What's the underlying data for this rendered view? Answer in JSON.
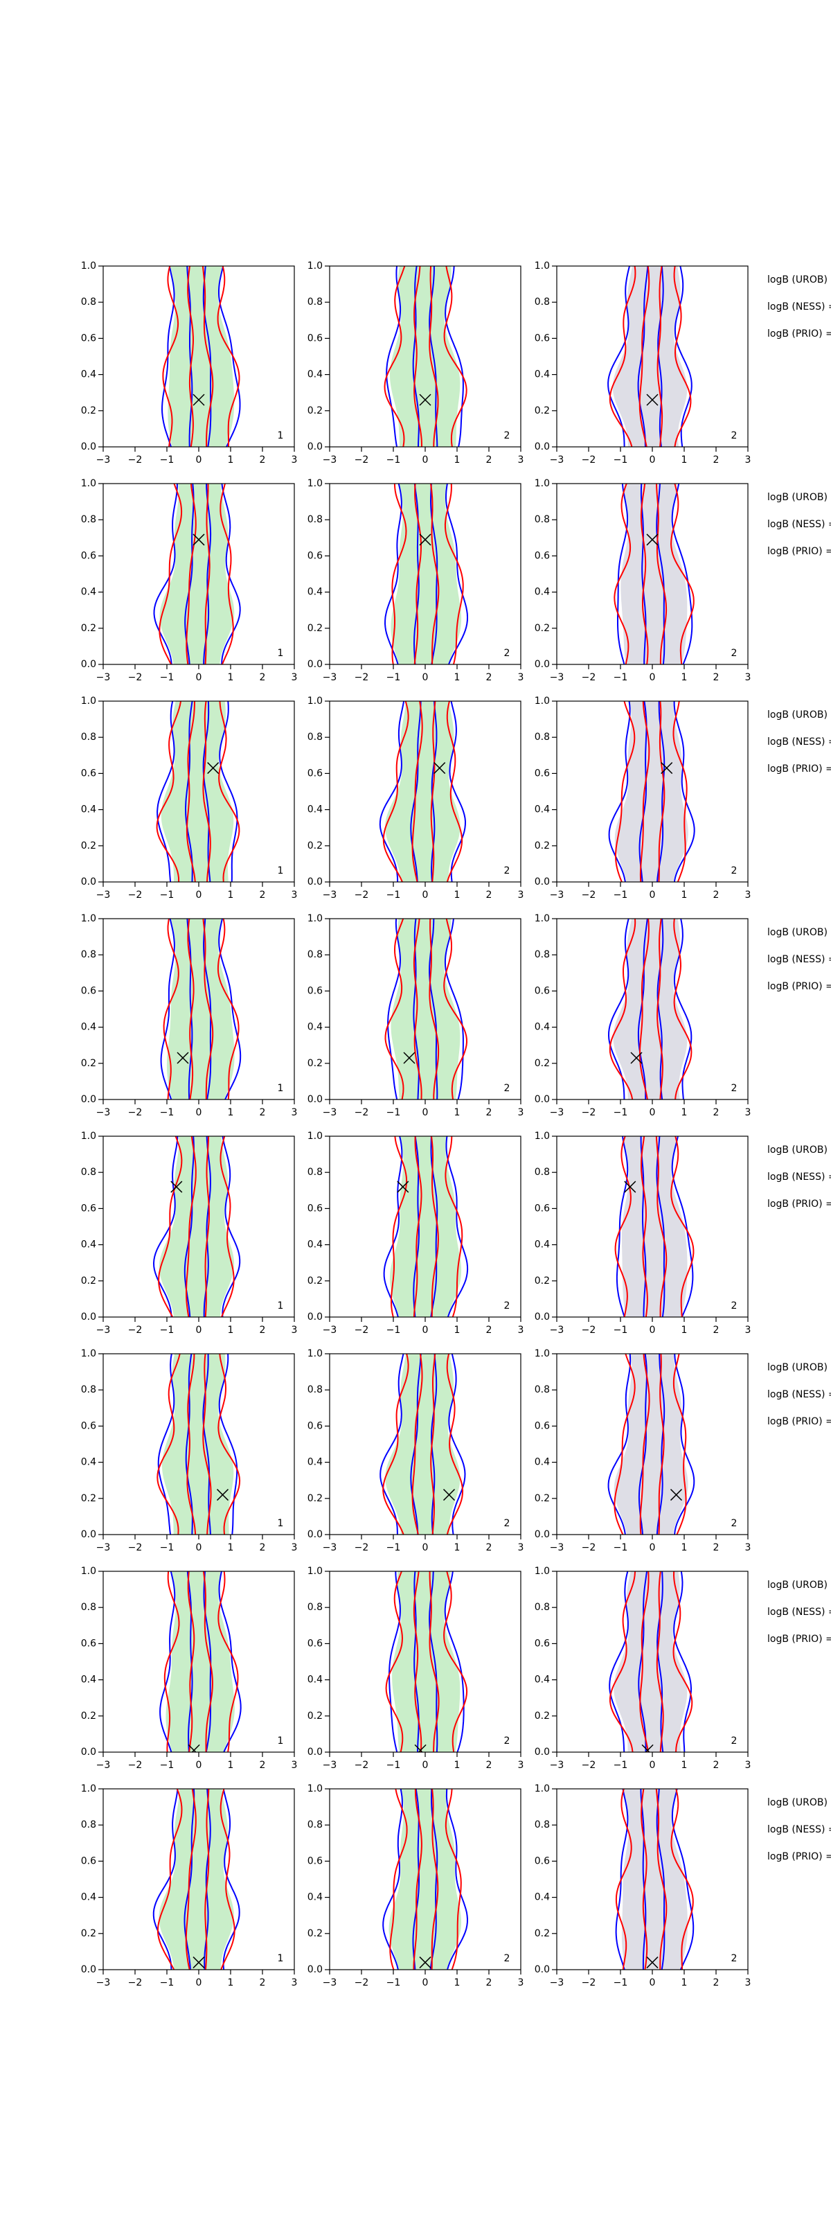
{
  "chart_data": [
    {
      "type": "contour",
      "xlim": [
        -3,
        3
      ],
      "xticks": [
        {
          "value": -3,
          "label": "−3"
        },
        {
          "value": -2,
          "label": "−2"
        },
        {
          "value": -1,
          "label": "−1"
        },
        0,
        1,
        2,
        3
      ],
      "ylim": [
        0,
        1
      ],
      "yticks": [
        {
          "value": 0,
          "label": "0.0"
        },
        0.2,
        0.4,
        0.6,
        0.8,
        {
          "value": 1,
          "label": "1.0"
        }
      ],
      "label": "1",
      "marker_x": 0,
      "marker_y": 0.26,
      "fill": "#c9eec9",
      "contour_colors": [
        "#0000ff",
        "#ff0000"
      ]
    },
    {
      "type": "contour",
      "xlim": [
        -3,
        3
      ],
      "xticks": [
        {
          "value": -3,
          "label": "−3"
        },
        {
          "value": -2,
          "label": "−2"
        },
        {
          "value": -1,
          "label": "−1"
        },
        0,
        1,
        2,
        3
      ],
      "ylim": [
        0,
        1
      ],
      "yticks": [
        {
          "value": 0,
          "label": "0.0"
        },
        0.2,
        0.4,
        0.6,
        0.8,
        {
          "value": 1,
          "label": "1.0"
        }
      ],
      "label": "2",
      "marker_x": 0,
      "marker_y": 0.26,
      "fill": "#c9eec9",
      "contour_colors": [
        "#0000ff",
        "#ff0000"
      ]
    },
    {
      "type": "contour",
      "xlim": [
        -3,
        3
      ],
      "xticks": [
        {
          "value": -3,
          "label": "−3"
        },
        {
          "value": -2,
          "label": "−2"
        },
        {
          "value": -1,
          "label": "−1"
        },
        0,
        1,
        2,
        3
      ],
      "ylim": [
        0,
        1
      ],
      "yticks": [
        {
          "value": 0,
          "label": "0.0"
        },
        0.2,
        0.4,
        0.6,
        0.8,
        {
          "value": 1,
          "label": "1.0"
        }
      ],
      "label": "2",
      "marker_x": 0,
      "marker_y": 0.26,
      "fill": "#dedee6",
      "contour_colors": [
        "#0000ff",
        "#ff0000"
      ],
      "annotations": [
        "logB (UROB) =",
        "logB (NESS) =",
        "logB (PRIO) ="
      ]
    },
    {
      "type": "contour",
      "xlim": [
        -3,
        3
      ],
      "xticks": [
        {
          "value": -3,
          "label": "−3"
        },
        {
          "value": -2,
          "label": "−2"
        },
        {
          "value": -1,
          "label": "−1"
        },
        0,
        1,
        2,
        3
      ],
      "ylim": [
        0,
        1
      ],
      "yticks": [
        {
          "value": 0,
          "label": "0.0"
        },
        0.2,
        0.4,
        0.6,
        0.8,
        {
          "value": 1,
          "label": "1.0"
        }
      ],
      "label": "1",
      "marker_x": 0,
      "marker_y": 0.69,
      "fill": "#c9eec9",
      "contour_colors": [
        "#0000ff",
        "#ff0000"
      ]
    },
    {
      "type": "contour",
      "xlim": [
        -3,
        3
      ],
      "xticks": [
        {
          "value": -3,
          "label": "−3"
        },
        {
          "value": -2,
          "label": "−2"
        },
        {
          "value": -1,
          "label": "−1"
        },
        0,
        1,
        2,
        3
      ],
      "ylim": [
        0,
        1
      ],
      "yticks": [
        {
          "value": 0,
          "label": "0.0"
        },
        0.2,
        0.4,
        0.6,
        0.8,
        {
          "value": 1,
          "label": "1.0"
        }
      ],
      "label": "2",
      "marker_x": 0,
      "marker_y": 0.69,
      "fill": "#c9eec9",
      "contour_colors": [
        "#0000ff",
        "#ff0000"
      ]
    },
    {
      "type": "contour",
      "xlim": [
        -3,
        3
      ],
      "xticks": [
        {
          "value": -3,
          "label": "−3"
        },
        {
          "value": -2,
          "label": "−2"
        },
        {
          "value": -1,
          "label": "−1"
        },
        0,
        1,
        2,
        3
      ],
      "ylim": [
        0,
        1
      ],
      "yticks": [
        {
          "value": 0,
          "label": "0.0"
        },
        0.2,
        0.4,
        0.6,
        0.8,
        {
          "value": 1,
          "label": "1.0"
        }
      ],
      "label": "2",
      "marker_x": 0,
      "marker_y": 0.69,
      "fill": "#dedee6",
      "contour_colors": [
        "#0000ff",
        "#ff0000"
      ],
      "annotations": [
        "logB (UROB) =",
        "logB (NESS) =",
        "logB (PRIO) ="
      ]
    },
    {
      "type": "contour",
      "xlim": [
        -3,
        3
      ],
      "xticks": [
        {
          "value": -3,
          "label": "−3"
        },
        {
          "value": -2,
          "label": "−2"
        },
        {
          "value": -1,
          "label": "−1"
        },
        0,
        1,
        2,
        3
      ],
      "ylim": [
        0,
        1
      ],
      "yticks": [
        {
          "value": 0,
          "label": "0.0"
        },
        0.2,
        0.4,
        0.6,
        0.8,
        {
          "value": 1,
          "label": "1.0"
        }
      ],
      "label": "1",
      "marker_x": 0.45,
      "marker_y": 0.63,
      "fill": "#c9eec9",
      "contour_colors": [
        "#0000ff",
        "#ff0000"
      ]
    },
    {
      "type": "contour",
      "xlim": [
        -3,
        3
      ],
      "xticks": [
        {
          "value": -3,
          "label": "−3"
        },
        {
          "value": -2,
          "label": "−2"
        },
        {
          "value": -1,
          "label": "−1"
        },
        0,
        1,
        2,
        3
      ],
      "ylim": [
        0,
        1
      ],
      "yticks": [
        {
          "value": 0,
          "label": "0.0"
        },
        0.2,
        0.4,
        0.6,
        0.8,
        {
          "value": 1,
          "label": "1.0"
        }
      ],
      "label": "2",
      "marker_x": 0.45,
      "marker_y": 0.63,
      "fill": "#c9eec9",
      "contour_colors": [
        "#0000ff",
        "#ff0000"
      ]
    },
    {
      "type": "contour",
      "xlim": [
        -3,
        3
      ],
      "xticks": [
        {
          "value": -3,
          "label": "−3"
        },
        {
          "value": -2,
          "label": "−2"
        },
        {
          "value": -1,
          "label": "−1"
        },
        0,
        1,
        2,
        3
      ],
      "ylim": [
        0,
        1
      ],
      "yticks": [
        {
          "value": 0,
          "label": "0.0"
        },
        0.2,
        0.4,
        0.6,
        0.8,
        {
          "value": 1,
          "label": "1.0"
        }
      ],
      "label": "2",
      "marker_x": 0.45,
      "marker_y": 0.63,
      "fill": "#dedee6",
      "contour_colors": [
        "#0000ff",
        "#ff0000"
      ],
      "annotations": [
        "logB (UROB) =",
        "logB (NESS) =",
        "logB (PRIO) ="
      ]
    },
    {
      "type": "contour",
      "xlim": [
        -3,
        3
      ],
      "xticks": [
        {
          "value": -3,
          "label": "−3"
        },
        {
          "value": -2,
          "label": "−2"
        },
        {
          "value": -1,
          "label": "−1"
        },
        0,
        1,
        2,
        3
      ],
      "ylim": [
        0,
        1
      ],
      "yticks": [
        {
          "value": 0,
          "label": "0.0"
        },
        0.2,
        0.4,
        0.6,
        0.8,
        {
          "value": 1,
          "label": "1.0"
        }
      ],
      "label": "1",
      "marker_x": -0.5,
      "marker_y": 0.23,
      "fill": "#c9eec9",
      "contour_colors": [
        "#0000ff",
        "#ff0000"
      ]
    },
    {
      "type": "contour",
      "xlim": [
        -3,
        3
      ],
      "xticks": [
        {
          "value": -3,
          "label": "−3"
        },
        {
          "value": -2,
          "label": "−2"
        },
        {
          "value": -1,
          "label": "−1"
        },
        0,
        1,
        2,
        3
      ],
      "ylim": [
        0,
        1
      ],
      "yticks": [
        {
          "value": 0,
          "label": "0.0"
        },
        0.2,
        0.4,
        0.6,
        0.8,
        {
          "value": 1,
          "label": "1.0"
        }
      ],
      "label": "2",
      "marker_x": -0.5,
      "marker_y": 0.23,
      "fill": "#c9eec9",
      "contour_colors": [
        "#0000ff",
        "#ff0000"
      ]
    },
    {
      "type": "contour",
      "xlim": [
        -3,
        3
      ],
      "xticks": [
        {
          "value": -3,
          "label": "−3"
        },
        {
          "value": -2,
          "label": "−2"
        },
        {
          "value": -1,
          "label": "−1"
        },
        0,
        1,
        2,
        3
      ],
      "ylim": [
        0,
        1
      ],
      "yticks": [
        {
          "value": 0,
          "label": "0.0"
        },
        0.2,
        0.4,
        0.6,
        0.8,
        {
          "value": 1,
          "label": "1.0"
        }
      ],
      "label": "2",
      "marker_x": -0.5,
      "marker_y": 0.23,
      "fill": "#dedee6",
      "contour_colors": [
        "#0000ff",
        "#ff0000"
      ],
      "annotations": [
        "logB (UROB) =",
        "logB (NESS) =",
        "logB (PRIO) ="
      ]
    },
    {
      "type": "contour",
      "xlim": [
        -3,
        3
      ],
      "xticks": [
        {
          "value": -3,
          "label": "−3"
        },
        {
          "value": -2,
          "label": "−2"
        },
        {
          "value": -1,
          "label": "−1"
        },
        0,
        1,
        2,
        3
      ],
      "ylim": [
        0,
        1
      ],
      "yticks": [
        {
          "value": 0,
          "label": "0.0"
        },
        0.2,
        0.4,
        0.6,
        0.8,
        {
          "value": 1,
          "label": "1.0"
        }
      ],
      "label": "1",
      "marker_x": -0.7,
      "marker_y": 0.72,
      "fill": "#c9eec9",
      "contour_colors": [
        "#0000ff",
        "#ff0000"
      ]
    },
    {
      "type": "contour",
      "xlim": [
        -3,
        3
      ],
      "xticks": [
        {
          "value": -3,
          "label": "−3"
        },
        {
          "value": -2,
          "label": "−2"
        },
        {
          "value": -1,
          "label": "−1"
        },
        0,
        1,
        2,
        3
      ],
      "ylim": [
        0,
        1
      ],
      "yticks": [
        {
          "value": 0,
          "label": "0.0"
        },
        0.2,
        0.4,
        0.6,
        0.8,
        {
          "value": 1,
          "label": "1.0"
        }
      ],
      "label": "2",
      "marker_x": -0.7,
      "marker_y": 0.72,
      "fill": "#c9eec9",
      "contour_colors": [
        "#0000ff",
        "#ff0000"
      ]
    },
    {
      "type": "contour",
      "xlim": [
        -3,
        3
      ],
      "xticks": [
        {
          "value": -3,
          "label": "−3"
        },
        {
          "value": -2,
          "label": "−2"
        },
        {
          "value": -1,
          "label": "−1"
        },
        0,
        1,
        2,
        3
      ],
      "ylim": [
        0,
        1
      ],
      "yticks": [
        {
          "value": 0,
          "label": "0.0"
        },
        0.2,
        0.4,
        0.6,
        0.8,
        {
          "value": 1,
          "label": "1.0"
        }
      ],
      "label": "2",
      "marker_x": -0.7,
      "marker_y": 0.72,
      "fill": "#dedee6",
      "contour_colors": [
        "#0000ff",
        "#ff0000"
      ],
      "annotations": [
        "logB (UROB) =",
        "logB (NESS) =",
        "logB (PRIO) ="
      ]
    },
    {
      "type": "contour",
      "xlim": [
        -3,
        3
      ],
      "xticks": [
        {
          "value": -3,
          "label": "−3"
        },
        {
          "value": -2,
          "label": "−2"
        },
        {
          "value": -1,
          "label": "−1"
        },
        0,
        1,
        2,
        3
      ],
      "ylim": [
        0,
        1
      ],
      "yticks": [
        {
          "value": 0,
          "label": "0.0"
        },
        0.2,
        0.4,
        0.6,
        0.8,
        {
          "value": 1,
          "label": "1.0"
        }
      ],
      "label": "1",
      "marker_x": 0.75,
      "marker_y": 0.22,
      "fill": "#c9eec9",
      "contour_colors": [
        "#0000ff",
        "#ff0000"
      ]
    },
    {
      "type": "contour",
      "xlim": [
        -3,
        3
      ],
      "xticks": [
        {
          "value": -3,
          "label": "−3"
        },
        {
          "value": -2,
          "label": "−2"
        },
        {
          "value": -1,
          "label": "−1"
        },
        0,
        1,
        2,
        3
      ],
      "ylim": [
        0,
        1
      ],
      "yticks": [
        {
          "value": 0,
          "label": "0.0"
        },
        0.2,
        0.4,
        0.6,
        0.8,
        {
          "value": 1,
          "label": "1.0"
        }
      ],
      "label": "2",
      "marker_x": 0.75,
      "marker_y": 0.22,
      "fill": "#c9eec9",
      "contour_colors": [
        "#0000ff",
        "#ff0000"
      ]
    },
    {
      "type": "contour",
      "xlim": [
        -3,
        3
      ],
      "xticks": [
        {
          "value": -3,
          "label": "−3"
        },
        {
          "value": -2,
          "label": "−2"
        },
        {
          "value": -1,
          "label": "−1"
        },
        0,
        1,
        2,
        3
      ],
      "ylim": [
        0,
        1
      ],
      "yticks": [
        {
          "value": 0,
          "label": "0.0"
        },
        0.2,
        0.4,
        0.6,
        0.8,
        {
          "value": 1,
          "label": "1.0"
        }
      ],
      "label": "2",
      "marker_x": 0.75,
      "marker_y": 0.22,
      "fill": "#dedee6",
      "contour_colors": [
        "#0000ff",
        "#ff0000"
      ],
      "annotations": [
        "logB (UROB) =",
        "logB (NESS) =",
        "logB (PRIO) ="
      ]
    },
    {
      "type": "contour",
      "xlim": [
        -3,
        3
      ],
      "xticks": [
        {
          "value": -3,
          "label": "−3"
        },
        {
          "value": -2,
          "label": "−2"
        },
        {
          "value": -1,
          "label": "−1"
        },
        0,
        1,
        2,
        3
      ],
      "ylim": [
        0,
        1
      ],
      "yticks": [
        {
          "value": 0,
          "label": "0.0"
        },
        0.2,
        0.4,
        0.6,
        0.8,
        {
          "value": 1,
          "label": "1.0"
        }
      ],
      "label": "1",
      "marker_x": -0.15,
      "marker_y": 0.01,
      "fill": "#c9eec9",
      "contour_colors": [
        "#0000ff",
        "#ff0000"
      ]
    },
    {
      "type": "contour",
      "xlim": [
        -3,
        3
      ],
      "xticks": [
        {
          "value": -3,
          "label": "−3"
        },
        {
          "value": -2,
          "label": "−2"
        },
        {
          "value": -1,
          "label": "−1"
        },
        0,
        1,
        2,
        3
      ],
      "ylim": [
        0,
        1
      ],
      "yticks": [
        {
          "value": 0,
          "label": "0.0"
        },
        0.2,
        0.4,
        0.6,
        0.8,
        {
          "value": 1,
          "label": "1.0"
        }
      ],
      "label": "2",
      "marker_x": -0.15,
      "marker_y": 0.01,
      "fill": "#c9eec9",
      "contour_colors": [
        "#0000ff",
        "#ff0000"
      ]
    },
    {
      "type": "contour",
      "xlim": [
        -3,
        3
      ],
      "xticks": [
        {
          "value": -3,
          "label": "−3"
        },
        {
          "value": -2,
          "label": "−2"
        },
        {
          "value": -1,
          "label": "−1"
        },
        0,
        1,
        2,
        3
      ],
      "ylim": [
        0,
        1
      ],
      "yticks": [
        {
          "value": 0,
          "label": "0.0"
        },
        0.2,
        0.4,
        0.6,
        0.8,
        {
          "value": 1,
          "label": "1.0"
        }
      ],
      "label": "2",
      "marker_x": -0.15,
      "marker_y": 0.01,
      "fill": "#dedee6",
      "contour_colors": [
        "#0000ff",
        "#ff0000"
      ],
      "annotations": [
        "logB (UROB) =",
        "logB (NESS) =",
        "logB (PRIO) ="
      ]
    },
    {
      "type": "contour",
      "xlim": [
        -3,
        3
      ],
      "xticks": [
        {
          "value": -3,
          "label": "−3"
        },
        {
          "value": -2,
          "label": "−2"
        },
        {
          "value": -1,
          "label": "−1"
        },
        0,
        1,
        2,
        3
      ],
      "ylim": [
        0,
        1
      ],
      "yticks": [
        {
          "value": 0,
          "label": "0.0"
        },
        0.2,
        0.4,
        0.6,
        0.8,
        {
          "value": 1,
          "label": "1.0"
        }
      ],
      "label": "1",
      "marker_x": 0,
      "marker_y": 0.04,
      "fill": "#c9eec9",
      "contour_colors": [
        "#0000ff",
        "#ff0000"
      ]
    },
    {
      "type": "contour",
      "xlim": [
        -3,
        3
      ],
      "xticks": [
        {
          "value": -3,
          "label": "−3"
        },
        {
          "value": -2,
          "label": "−2"
        },
        {
          "value": -1,
          "label": "−1"
        },
        0,
        1,
        2,
        3
      ],
      "ylim": [
        0,
        1
      ],
      "yticks": [
        {
          "value": 0,
          "label": "0.0"
        },
        0.2,
        0.4,
        0.6,
        0.8,
        {
          "value": 1,
          "label": "1.0"
        }
      ],
      "label": "2",
      "marker_x": 0,
      "marker_y": 0.04,
      "fill": "#c9eec9",
      "contour_colors": [
        "#0000ff",
        "#ff0000"
      ]
    },
    {
      "type": "contour",
      "xlim": [
        -3,
        3
      ],
      "xticks": [
        {
          "value": -3,
          "label": "−3"
        },
        {
          "value": -2,
          "label": "−2"
        },
        {
          "value": -1,
          "label": "−1"
        },
        0,
        1,
        2,
        3
      ],
      "ylim": [
        0,
        1
      ],
      "yticks": [
        {
          "value": 0,
          "label": "0.0"
        },
        0.2,
        0.4,
        0.6,
        0.8,
        {
          "value": 1,
          "label": "1.0"
        }
      ],
      "label": "2",
      "marker_x": 0,
      "marker_y": 0.04,
      "fill": "#dedee6",
      "contour_colors": [
        "#0000ff",
        "#ff0000"
      ],
      "annotations": [
        "logB (UROB) =",
        "logB (NESS) =",
        "logB (PRIO) ="
      ]
    }
  ]
}
